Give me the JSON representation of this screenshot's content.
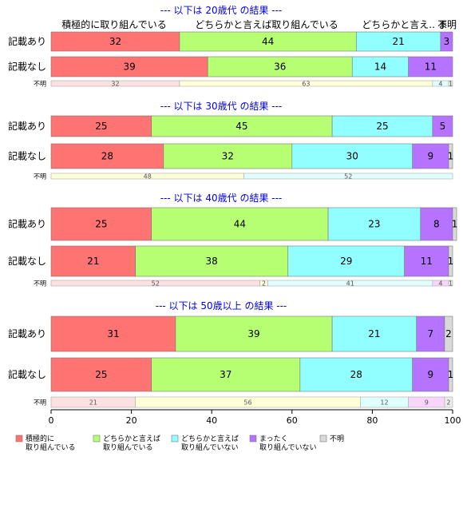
{
  "colors": [
    "#ff7373",
    "#b6ff73",
    "#91ffff",
    "#b673ff",
    "#d9d9d9"
  ],
  "small_colors": [
    "#fde0e0",
    "#ffffd8",
    "#e0ffff",
    "#f9d4fb",
    "#ececec"
  ],
  "chart_data": {
    "type": "bar",
    "orientation": "horizontal",
    "stacked": true,
    "xlim": [
      0,
      100
    ],
    "x_ticks": [
      0,
      20,
      40,
      60,
      80,
      100
    ],
    "column_headers": [
      "積極的に取り組んでいる",
      "どちらかと言えば取り組んでいる",
      "どちらかと言え.. ま",
      "不明"
    ],
    "legend": [
      "積極的に\n取り組んでいる",
      "どちらかと言えば\n取り組んでいる",
      "どちらかと言えば\n取り組んでいない",
      "まったく\n取り組んでいない",
      "不明"
    ],
    "panels": [
      {
        "title": "--- 以下は 20歳代 の結果 ---",
        "rows": [
          {
            "label": "記載あり",
            "values": [
              32,
              44,
              21,
              3,
              0
            ]
          },
          {
            "label": "記載なし",
            "values": [
              39,
              36,
              14,
              11,
              0
            ]
          },
          {
            "label": "不明",
            "small": true,
            "values": [
              32,
              63,
              4,
              0,
              1
            ]
          }
        ]
      },
      {
        "title": "--- 以下は 30歳代 の結果 ---",
        "rows": [
          {
            "label": "記載あり",
            "values": [
              25,
              45,
              25,
              5,
              0
            ]
          },
          {
            "label": "記載なし",
            "values": [
              28,
              32,
              30,
              9,
              1
            ]
          },
          {
            "label": "不明",
            "small": true,
            "values": [
              0,
              48,
              52,
              0,
              0
            ]
          }
        ]
      },
      {
        "title": "--- 以下は 40歳代 の結果 ---",
        "rows": [
          {
            "label": "記載あり",
            "values": [
              25,
              44,
              23,
              8,
              1
            ]
          },
          {
            "label": "記載なし",
            "values": [
              21,
              38,
              29,
              11,
              1
            ]
          },
          {
            "label": "不明",
            "small": true,
            "values": [
              52,
              2,
              41,
              4,
              1
            ]
          }
        ]
      },
      {
        "title": "--- 以下は 50歳以上 の結果 ---",
        "rows": [
          {
            "label": "記載あり",
            "values": [
              31,
              39,
              21,
              7,
              2
            ]
          },
          {
            "label": "記載なし",
            "values": [
              25,
              37,
              28,
              9,
              1
            ]
          },
          {
            "label": "不明",
            "small": true,
            "values": [
              21,
              56,
              12,
              9,
              2
            ]
          }
        ]
      }
    ]
  }
}
